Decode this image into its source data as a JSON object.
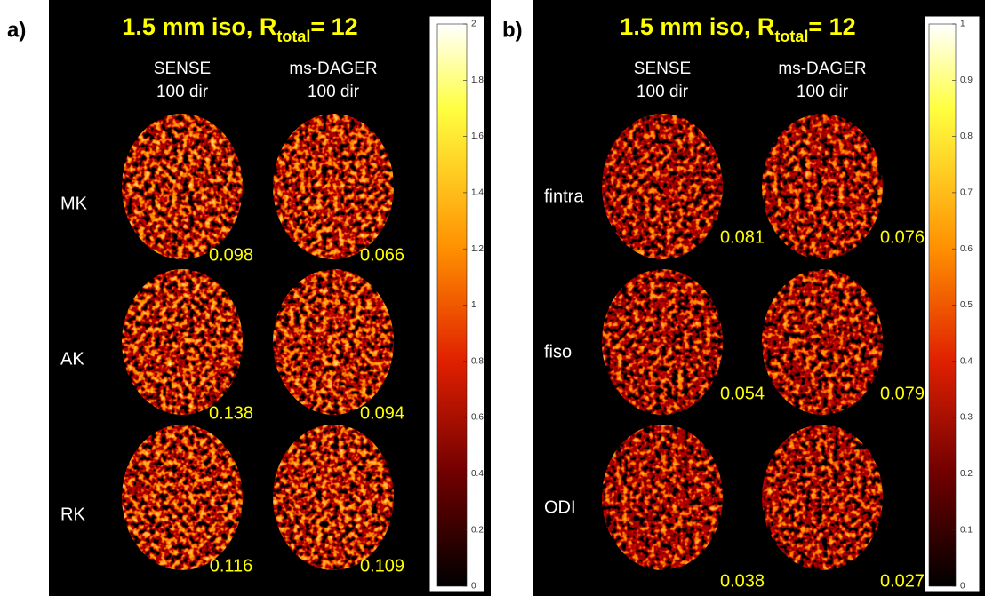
{
  "panels": [
    {
      "label": "a)",
      "title": {
        "main": "1.5 mm iso, R",
        "sub": "total",
        "rest": "= 12"
      },
      "columns": [
        {
          "line1": "SENSE",
          "line2": "100 dir"
        },
        {
          "line1": "ms-DAGER",
          "line2": "100 dir"
        }
      ],
      "rows": [
        {
          "label": "MK",
          "values": [
            "0.098",
            "0.066"
          ]
        },
        {
          "label": "AK",
          "values": [
            "0.138",
            "0.094"
          ]
        },
        {
          "label": "RK",
          "values": [
            "0.116",
            "0.109"
          ]
        }
      ],
      "colorbar_ticks": [
        "0",
        "0.2",
        "0.4",
        "0.6",
        "0.8",
        "1",
        "1.2",
        "1.4",
        "1.6",
        "1.8",
        "2"
      ]
    },
    {
      "label": "b)",
      "title": {
        "main": "1.5 mm iso, R",
        "sub": "total",
        "rest": "= 12"
      },
      "columns": [
        {
          "line1": "SENSE",
          "line2": "100 dir"
        },
        {
          "line1": "ms-DAGER",
          "line2": "100 dir"
        }
      ],
      "rows": [
        {
          "label": "fintra",
          "values": [
            "0.081",
            "0.076"
          ]
        },
        {
          "label": "fiso",
          "values": [
            "0.054",
            "0.079"
          ]
        },
        {
          "label": "ODI",
          "values": [
            "0.038",
            "0.027"
          ]
        }
      ],
      "colorbar_ticks": [
        "0",
        "0.1",
        "0.2",
        "0.3",
        "0.4",
        "0.5",
        "0.6",
        "0.7",
        "0.8",
        "0.9",
        "1"
      ]
    }
  ]
}
